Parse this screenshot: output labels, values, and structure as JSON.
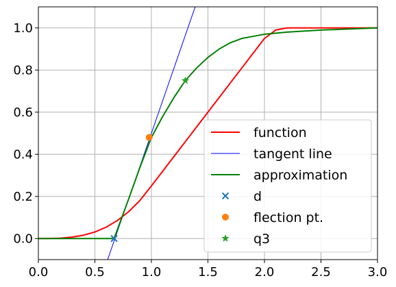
{
  "chart_data": {
    "type": "line",
    "title": "",
    "xlabel": "",
    "ylabel": "",
    "xlim": [
      0.0,
      3.0
    ],
    "ylim": [
      -0.1,
      1.1
    ],
    "grid": true,
    "legend_position": "bottom-right",
    "x_ticks": [
      0.0,
      0.5,
      1.0,
      1.5,
      2.0,
      2.5,
      3.0
    ],
    "x_tick_labels": [
      "0.0",
      "0.5",
      "1.0",
      "1.5",
      "2.0",
      "2.5",
      "3.0"
    ],
    "y_ticks": [
      0.0,
      0.2,
      0.4,
      0.6,
      0.8,
      1.0
    ],
    "y_tick_labels": [
      "0.0",
      "0.2",
      "0.4",
      "0.6",
      "0.8",
      "1.0"
    ],
    "series": [
      {
        "name": "function",
        "kind": "line",
        "color": "#ff0000",
        "points": [
          [
            0.0,
            0.0
          ],
          [
            0.1,
            0.0005
          ],
          [
            0.2,
            0.002
          ],
          [
            0.3,
            0.0068
          ],
          [
            0.4,
            0.016
          ],
          [
            0.5,
            0.031
          ],
          [
            0.6,
            0.054
          ],
          [
            0.7,
            0.086
          ],
          [
            0.8,
            0.128
          ],
          [
            0.9,
            0.182
          ],
          [
            1.0,
            0.25
          ],
          [
            1.1,
            0.32
          ],
          [
            1.2,
            0.39
          ],
          [
            1.3,
            0.46
          ],
          [
            1.4,
            0.53
          ],
          [
            1.5,
            0.6
          ],
          [
            1.6,
            0.67
          ],
          [
            1.7,
            0.74
          ],
          [
            1.8,
            0.81
          ],
          [
            1.9,
            0.88
          ],
          [
            2.0,
            0.95
          ],
          [
            2.1,
            0.99
          ],
          [
            2.2,
            1.0
          ],
          [
            3.0,
            1.0
          ]
        ]
      },
      {
        "name": "tangent line",
        "kind": "line",
        "color": "#0000ff",
        "points": [
          [
            0.6,
            -0.12
          ],
          [
            1.4,
            1.12
          ]
        ]
      },
      {
        "name": "approximation",
        "kind": "line",
        "color": "#008000",
        "points": [
          [
            0.0,
            0.0
          ],
          [
            0.67,
            0.0
          ],
          [
            0.8,
            0.19
          ],
          [
            0.9,
            0.34
          ],
          [
            1.0,
            0.48
          ],
          [
            1.1,
            0.58
          ],
          [
            1.2,
            0.67
          ],
          [
            1.3,
            0.75
          ],
          [
            1.4,
            0.81
          ],
          [
            1.5,
            0.86
          ],
          [
            1.6,
            0.9
          ],
          [
            1.7,
            0.93
          ],
          [
            1.8,
            0.95
          ],
          [
            1.9,
            0.96
          ],
          [
            2.0,
            0.97
          ],
          [
            2.2,
            0.98
          ],
          [
            2.5,
            0.99
          ],
          [
            3.0,
            1.0
          ]
        ]
      },
      {
        "name": "d",
        "kind": "scatter",
        "marker": "x",
        "color": "#1f77b4",
        "points": [
          [
            0.67,
            0.0
          ]
        ]
      },
      {
        "name": "flection pt.",
        "kind": "scatter",
        "marker": "o",
        "color": "#ff7f0e",
        "points": [
          [
            0.98,
            0.48
          ]
        ]
      },
      {
        "name": "q3",
        "kind": "scatter",
        "marker": "*",
        "color": "#2ca02c",
        "points": [
          [
            1.3,
            0.75
          ]
        ]
      }
    ]
  }
}
